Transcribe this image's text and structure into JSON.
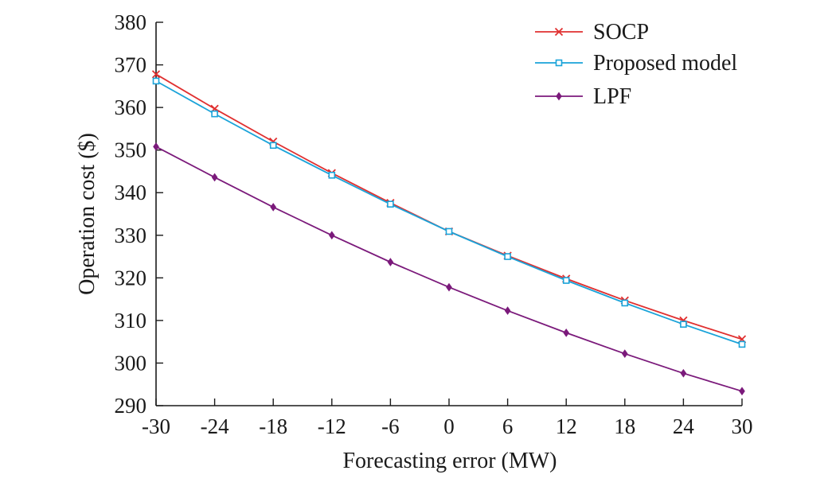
{
  "chart_data": {
    "type": "line",
    "xlabel": "Forecasting error (MW)",
    "ylabel": "Operation cost ($)",
    "x": [
      -30,
      -24,
      -18,
      -12,
      -6,
      0,
      6,
      12,
      18,
      24,
      30
    ],
    "x_tick_labels": [
      "-30",
      "-24",
      "-18",
      "-12",
      "-6",
      "0",
      "6",
      "12",
      "18",
      "24",
      "30"
    ],
    "y_ticks": [
      290,
      300,
      310,
      320,
      330,
      340,
      350,
      360,
      370,
      380
    ],
    "ylim": [
      290,
      380
    ],
    "xlim": [
      -30,
      30
    ],
    "grid": false,
    "legend_position": "top-right",
    "series": [
      {
        "name": "SOCP",
        "color": "#e03030",
        "marker": "x",
        "values": [
          367.8,
          359.7,
          352.0,
          344.6,
          337.6,
          330.9,
          325.2,
          319.8,
          314.7,
          310.0,
          305.6
        ]
      },
      {
        "name": "Proposed model",
        "color": "#1aa3d9",
        "marker": "square",
        "values": [
          366.2,
          358.5,
          351.1,
          344.1,
          337.3,
          330.9,
          325.0,
          319.4,
          314.1,
          309.1,
          304.4
        ]
      },
      {
        "name": "LPF",
        "color": "#7b1a7b",
        "marker": "diamond",
        "values": [
          350.8,
          343.6,
          336.6,
          330.0,
          323.7,
          317.8,
          312.3,
          307.1,
          302.2,
          297.6,
          293.4
        ]
      }
    ]
  }
}
